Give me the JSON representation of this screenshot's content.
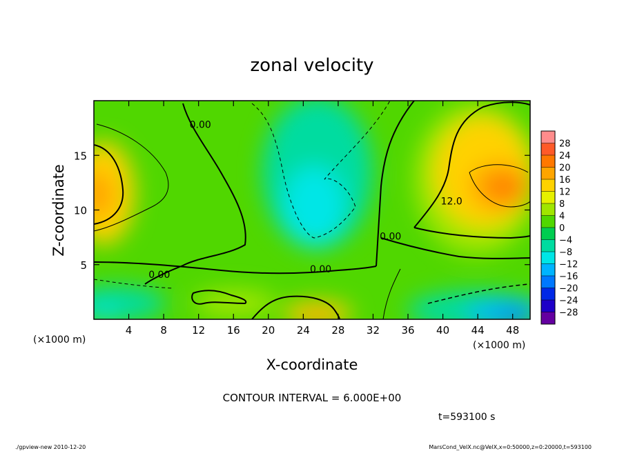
{
  "chart_data": {
    "type": "heatmap",
    "title": "zonal velocity",
    "xlabel": "X-coordinate",
    "ylabel": "Z-coordinate",
    "x_unit_label": "(×1000 m)",
    "y_unit_label": "(×1000 m)",
    "xlim": [
      0,
      50
    ],
    "ylim": [
      0,
      20
    ],
    "x_ticks": [
      4,
      8,
      12,
      16,
      20,
      24,
      28,
      32,
      36,
      40,
      44,
      48
    ],
    "y_ticks": [
      5,
      10,
      15
    ],
    "colorbar": {
      "levels": [
        28,
        24,
        20,
        16,
        12,
        8,
        4,
        0,
        -4,
        -8,
        -12,
        -16,
        -20,
        -24,
        -28
      ],
      "colors": [
        "#ff8c8c",
        "#ff5a28",
        "#ff7800",
        "#ffa500",
        "#ffd200",
        "#e6f000",
        "#a0e600",
        "#50d700",
        "#00cd50",
        "#00dca0",
        "#00e6e6",
        "#00b4ff",
        "#0078ff",
        "#0028e6",
        "#1e00c8",
        "#6400a0"
      ]
    },
    "contour_interval_text": "CONTOUR INTERVAL = 6.000E+00",
    "contour_labels": [
      {
        "text": "0.00",
        "x": 12.2,
        "y": 17.5
      },
      {
        "text": "0.00",
        "x": 7.5,
        "y": 3.8
      },
      {
        "text": "0.00",
        "x": 26.0,
        "y": 4.3
      },
      {
        "text": "0.00",
        "x": 34.0,
        "y": 7.3
      },
      {
        "text": "12.0",
        "x": 41.0,
        "y": 10.5
      }
    ],
    "z_samples": [
      {
        "x": 0,
        "z": 12,
        "value": 17
      },
      {
        "x": 3,
        "z": 12,
        "value": 10
      },
      {
        "x": 23.5,
        "z": 1.3,
        "value": 14
      },
      {
        "x": 24,
        "z": 10,
        "value": -11
      },
      {
        "x": 46,
        "z": 12.5,
        "value": 21
      },
      {
        "x": 44,
        "z": 17,
        "value": 14
      },
      {
        "x": 47,
        "z": 1,
        "value": -17
      },
      {
        "x": 2,
        "z": 1.5,
        "value": -14
      },
      {
        "x": 30,
        "z": 15,
        "value": -6
      },
      {
        "x": 14,
        "z": 8,
        "value": 3
      }
    ]
  },
  "time_label": "t=593100 s",
  "footer_left": "./gpview-new  2010-12-20",
  "footer_right": "MarsCond_VelX.nc@VelX,x=0:50000,z=0:20000,t=593100"
}
